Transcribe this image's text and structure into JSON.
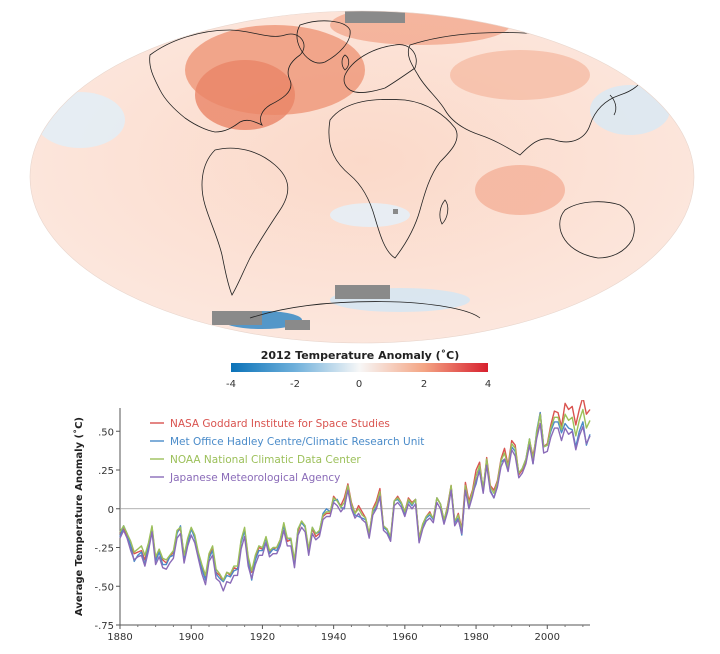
{
  "map": {
    "colorbar_title": "2012 Temperature Anomaly (˚C)",
    "colorbar_ticks": [
      "-4",
      "-2",
      "0",
      "2",
      "4"
    ],
    "colorbar_colors": [
      "#0a72b8",
      "#6fb0db",
      "#f7f7f7",
      "#f4a584",
      "#d7202e"
    ],
    "ocean_color": "#fbe1d6",
    "land_outline_color": "#222222",
    "nodata_color": "#8a8a8a"
  },
  "chart_data": {
    "type": "line",
    "title": "",
    "xlabel": "",
    "ylabel": "Average Temperature Anomaly (˚C)",
    "xlim": [
      1880,
      2012
    ],
    "ylim": [
      -0.75,
      0.65
    ],
    "x_ticks": [
      1880,
      1900,
      1920,
      1940,
      1960,
      1980,
      2000
    ],
    "y_ticks": [
      0.5,
      0.25,
      0,
      -0.25,
      -0.5,
      -0.75
    ],
    "y_tick_labels": [
      ".50",
      ".25",
      "0",
      "-.25",
      "-.50",
      "-.75"
    ],
    "grid": false,
    "zero_line": true,
    "legend_position": "top-left",
    "x": [
      1880,
      1881,
      1882,
      1883,
      1884,
      1885,
      1886,
      1887,
      1888,
      1889,
      1890,
      1891,
      1892,
      1893,
      1894,
      1895,
      1896,
      1897,
      1898,
      1899,
      1900,
      1901,
      1902,
      1903,
      1904,
      1905,
      1906,
      1907,
      1908,
      1909,
      1910,
      1911,
      1912,
      1913,
      1914,
      1915,
      1916,
      1917,
      1918,
      1919,
      1920,
      1921,
      1922,
      1923,
      1924,
      1925,
      1926,
      1927,
      1928,
      1929,
      1930,
      1931,
      1932,
      1933,
      1934,
      1935,
      1936,
      1937,
      1938,
      1939,
      1940,
      1941,
      1942,
      1943,
      1944,
      1945,
      1946,
      1947,
      1948,
      1949,
      1950,
      1951,
      1952,
      1953,
      1954,
      1955,
      1956,
      1957,
      1958,
      1959,
      1960,
      1961,
      1962,
      1963,
      1964,
      1965,
      1966,
      1967,
      1968,
      1969,
      1970,
      1971,
      1972,
      1973,
      1974,
      1975,
      1976,
      1977,
      1978,
      1979,
      1980,
      1981,
      1982,
      1983,
      1984,
      1985,
      1986,
      1987,
      1988,
      1989,
      1990,
      1991,
      1992,
      1993,
      1994,
      1995,
      1996,
      1997,
      1998,
      1999,
      2000,
      2001,
      2002,
      2003,
      2004,
      2005,
      2006,
      2007,
      2008,
      2009,
      2010,
      2011,
      2012
    ],
    "series": [
      {
        "name": "NASA Goddard Institute for Space Studies",
        "color": "#d9534f",
        "values": [
          -0.16,
          -0.13,
          -0.17,
          -0.24,
          -0.29,
          -0.28,
          -0.27,
          -0.33,
          -0.23,
          -0.12,
          -0.32,
          -0.27,
          -0.33,
          -0.35,
          -0.31,
          -0.28,
          -0.15,
          -0.13,
          -0.31,
          -0.2,
          -0.13,
          -0.18,
          -0.29,
          -0.37,
          -0.45,
          -0.3,
          -0.26,
          -0.41,
          -0.43,
          -0.47,
          -0.41,
          -0.43,
          -0.38,
          -0.39,
          -0.21,
          -0.13,
          -0.32,
          -0.41,
          -0.32,
          -0.25,
          -0.26,
          -0.19,
          -0.28,
          -0.26,
          -0.25,
          -0.2,
          -0.1,
          -0.21,
          -0.2,
          -0.35,
          -0.15,
          -0.08,
          -0.12,
          -0.27,
          -0.13,
          -0.18,
          -0.16,
          -0.05,
          -0.03,
          -0.03,
          0.08,
          0.05,
          0.02,
          0.07,
          0.16,
          0.04,
          -0.03,
          0.02,
          -0.02,
          -0.06,
          -0.17,
          0.0,
          0.05,
          0.13,
          -0.12,
          -0.13,
          -0.19,
          0.05,
          0.08,
          0.04,
          -0.02,
          0.07,
          0.04,
          0.06,
          -0.19,
          -0.1,
          -0.05,
          -0.02,
          -0.07,
          0.07,
          0.03,
          -0.08,
          0.02,
          0.15,
          -0.09,
          -0.03,
          -0.13,
          0.17,
          0.05,
          0.12,
          0.25,
          0.3,
          0.12,
          0.33,
          0.15,
          0.12,
          0.18,
          0.32,
          0.39,
          0.28,
          0.44,
          0.41,
          0.22,
          0.25,
          0.31,
          0.44,
          0.34,
          0.47,
          0.62,
          0.4,
          0.42,
          0.54,
          0.63,
          0.62,
          0.53,
          0.68,
          0.64,
          0.66,
          0.54,
          0.64,
          0.72,
          0.61,
          0.64
        ]
      },
      {
        "name": "Met Office Hadley Centre/Climatic Research Unit",
        "color": "#4a8bc9",
        "values": [
          -0.18,
          -0.11,
          -0.16,
          -0.24,
          -0.34,
          -0.3,
          -0.28,
          -0.36,
          -0.24,
          -0.12,
          -0.34,
          -0.28,
          -0.36,
          -0.36,
          -0.31,
          -0.3,
          -0.16,
          -0.11,
          -0.33,
          -0.22,
          -0.13,
          -0.19,
          -0.3,
          -0.39,
          -0.46,
          -0.32,
          -0.27,
          -0.42,
          -0.45,
          -0.47,
          -0.43,
          -0.44,
          -0.4,
          -0.39,
          -0.22,
          -0.14,
          -0.34,
          -0.46,
          -0.33,
          -0.27,
          -0.27,
          -0.19,
          -0.29,
          -0.26,
          -0.27,
          -0.22,
          -0.11,
          -0.19,
          -0.2,
          -0.35,
          -0.13,
          -0.09,
          -0.12,
          -0.28,
          -0.12,
          -0.16,
          -0.15,
          -0.03,
          0.0,
          -0.02,
          0.05,
          0.06,
          0.01,
          0.0,
          0.14,
          0.02,
          -0.04,
          -0.05,
          -0.06,
          -0.07,
          -0.17,
          -0.02,
          0.01,
          0.08,
          -0.12,
          -0.14,
          -0.2,
          0.05,
          0.06,
          0.03,
          -0.03,
          0.05,
          0.02,
          0.06,
          -0.21,
          -0.11,
          -0.06,
          -0.04,
          -0.07,
          0.07,
          0.03,
          -0.08,
          -0.01,
          0.14,
          -0.09,
          -0.06,
          -0.17,
          0.13,
          0.01,
          0.1,
          0.16,
          0.26,
          0.13,
          0.31,
          0.12,
          0.07,
          0.15,
          0.3,
          0.32,
          0.26,
          0.4,
          0.37,
          0.23,
          0.26,
          0.32,
          0.45,
          0.29,
          0.5,
          0.62,
          0.4,
          0.41,
          0.5,
          0.56,
          0.56,
          0.49,
          0.55,
          0.52,
          0.51,
          0.4,
          0.5,
          0.56,
          0.41,
          0.48
        ]
      },
      {
        "name": "NOAA National Climatic Data Center",
        "color": "#9cc05a",
        "values": [
          -0.15,
          -0.11,
          -0.16,
          -0.21,
          -0.28,
          -0.26,
          -0.24,
          -0.3,
          -0.22,
          -0.11,
          -0.31,
          -0.26,
          -0.32,
          -0.33,
          -0.3,
          -0.27,
          -0.14,
          -0.12,
          -0.3,
          -0.19,
          -0.12,
          -0.17,
          -0.28,
          -0.36,
          -0.43,
          -0.29,
          -0.24,
          -0.39,
          -0.42,
          -0.46,
          -0.41,
          -0.42,
          -0.37,
          -0.37,
          -0.2,
          -0.12,
          -0.31,
          -0.4,
          -0.3,
          -0.24,
          -0.25,
          -0.18,
          -0.27,
          -0.25,
          -0.25,
          -0.2,
          -0.09,
          -0.19,
          -0.19,
          -0.33,
          -0.13,
          -0.08,
          -0.11,
          -0.26,
          -0.12,
          -0.16,
          -0.14,
          -0.04,
          -0.02,
          -0.02,
          0.07,
          0.05,
          0.01,
          0.04,
          0.15,
          0.03,
          -0.03,
          0.0,
          -0.04,
          -0.06,
          -0.16,
          -0.01,
          0.03,
          0.11,
          -0.11,
          -0.13,
          -0.18,
          0.05,
          0.07,
          0.04,
          -0.02,
          0.06,
          0.03,
          0.06,
          -0.19,
          -0.1,
          -0.05,
          -0.03,
          -0.06,
          0.07,
          0.03,
          -0.07,
          0.01,
          0.15,
          -0.08,
          -0.04,
          -0.14,
          0.15,
          0.03,
          0.11,
          0.21,
          0.28,
          0.13,
          0.32,
          0.14,
          0.1,
          0.17,
          0.31,
          0.36,
          0.27,
          0.42,
          0.39,
          0.23,
          0.26,
          0.32,
          0.45,
          0.32,
          0.49,
          0.61,
          0.4,
          0.41,
          0.52,
          0.59,
          0.59,
          0.51,
          0.61,
          0.57,
          0.59,
          0.47,
          0.57,
          0.64,
          0.52,
          0.57
        ]
      },
      {
        "name": "Japanese Meteorological Agency",
        "color": "#8a6bb8",
        "values": [
          -0.19,
          -0.14,
          -0.19,
          -0.27,
          -0.33,
          -0.31,
          -0.3,
          -0.37,
          -0.27,
          -0.15,
          -0.36,
          -0.31,
          -0.38,
          -0.39,
          -0.35,
          -0.32,
          -0.19,
          -0.16,
          -0.35,
          -0.24,
          -0.17,
          -0.22,
          -0.32,
          -0.42,
          -0.49,
          -0.34,
          -0.3,
          -0.45,
          -0.47,
          -0.53,
          -0.47,
          -0.48,
          -0.43,
          -0.43,
          -0.26,
          -0.18,
          -0.37,
          -0.45,
          -0.36,
          -0.3,
          -0.3,
          -0.22,
          -0.31,
          -0.29,
          -0.29,
          -0.24,
          -0.14,
          -0.24,
          -0.24,
          -0.38,
          -0.17,
          -0.12,
          -0.15,
          -0.3,
          -0.16,
          -0.2,
          -0.18,
          -0.07,
          -0.05,
          -0.05,
          0.04,
          0.02,
          -0.02,
          0.01,
          0.12,
          0.0,
          -0.06,
          -0.03,
          -0.07,
          -0.09,
          -0.19,
          -0.04,
          0.0,
          0.08,
          -0.14,
          -0.16,
          -0.21,
          0.02,
          0.04,
          0.01,
          -0.05,
          0.03,
          0.0,
          0.03,
          -0.22,
          -0.13,
          -0.08,
          -0.06,
          -0.09,
          0.04,
          0.0,
          -0.1,
          -0.02,
          0.12,
          -0.11,
          -0.07,
          -0.16,
          0.12,
          0.0,
          0.08,
          0.18,
          0.24,
          0.1,
          0.28,
          0.11,
          0.07,
          0.14,
          0.27,
          0.32,
          0.24,
          0.38,
          0.34,
          0.2,
          0.23,
          0.29,
          0.41,
          0.29,
          0.45,
          0.55,
          0.36,
          0.37,
          0.46,
          0.52,
          0.52,
          0.44,
          0.52,
          0.48,
          0.5,
          0.38,
          0.47,
          0.53,
          0.42,
          0.47
        ]
      }
    ]
  }
}
